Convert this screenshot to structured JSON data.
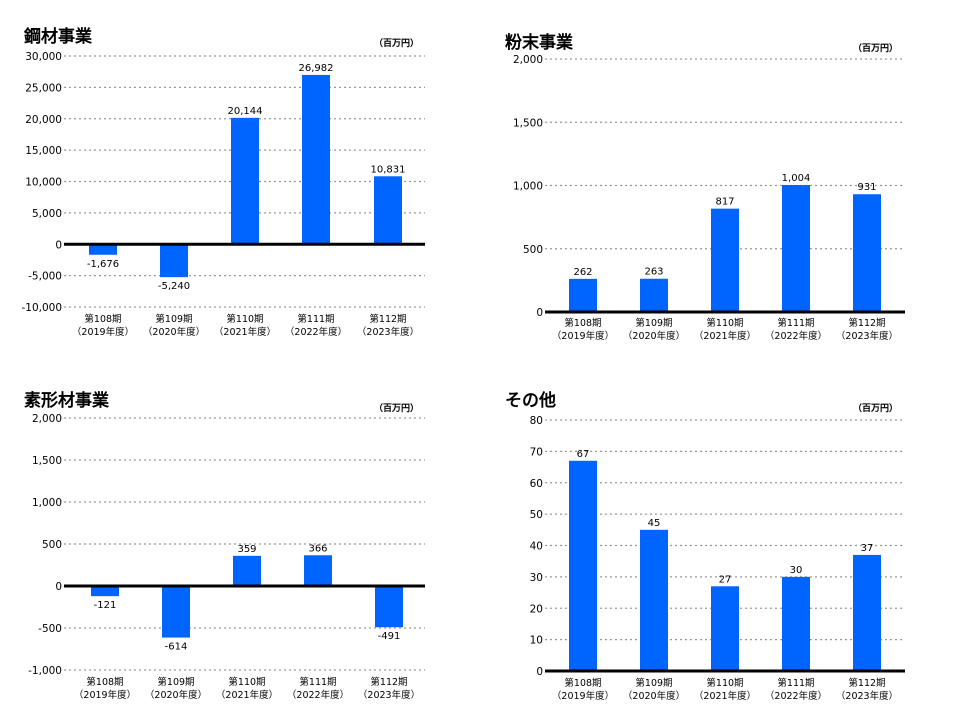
{
  "colors": {
    "bar": "#0064ff",
    "grid": "#999999",
    "axis": "#000000"
  },
  "categories": [
    [
      "第108期",
      "（2019年度）"
    ],
    [
      "第109期",
      "（2020年度）"
    ],
    [
      "第110期",
      "（2021年度）"
    ],
    [
      "第111期",
      "（2022年度）"
    ],
    [
      "第112期",
      "（2023年度）"
    ]
  ],
  "chart_data": [
    {
      "type": "bar",
      "title": "鋼材事業",
      "unit": "（百万円）",
      "categories": [
        "第108期（2019年度）",
        "第109期（2020年度）",
        "第110期（2021年度）",
        "第111期（2022年度）",
        "第112期（2023年度）"
      ],
      "values": [
        -1676,
        -5240,
        20144,
        26982,
        10831
      ],
      "data_labels": [
        "-1,676",
        "-5,240",
        "20,144",
        "26,982",
        "10,831"
      ],
      "ylim": [
        -10000,
        30000
      ],
      "yticks": [
        30000,
        25000,
        20000,
        15000,
        10000,
        5000,
        0,
        -5000,
        -10000
      ],
      "ytick_labels": [
        "30,000",
        "25,000",
        "20,000",
        "15,000",
        "10,000",
        "5,000",
        "0",
        "-5,000",
        "-10,000"
      ],
      "grid": true
    },
    {
      "type": "bar",
      "title": "粉末事業",
      "unit": "（百万円）",
      "categories": [
        "第108期（2019年度）",
        "第109期（2020年度）",
        "第110期（2021年度）",
        "第111期（2022年度）",
        "第112期（2023年度）"
      ],
      "values": [
        262,
        263,
        817,
        1004,
        931
      ],
      "data_labels": [
        "262",
        "263",
        "817",
        "1,004",
        "931"
      ],
      "ylim": [
        0,
        2000
      ],
      "yticks": [
        2000,
        1500,
        1000,
        500,
        0
      ],
      "ytick_labels": [
        "2,000",
        "1,500",
        "1,000",
        "500",
        "0"
      ],
      "grid": true
    },
    {
      "type": "bar",
      "title": "素形材事業",
      "unit": "（百万円）",
      "categories": [
        "第108期（2019年度）",
        "第109期（2020年度）",
        "第110期（2021年度）",
        "第111期（2022年度）",
        "第112期（2023年度）"
      ],
      "values": [
        -121,
        -614,
        359,
        366,
        -491
      ],
      "data_labels": [
        "-121",
        "-614",
        "359",
        "366",
        "-491"
      ],
      "ylim": [
        -1000,
        2000
      ],
      "yticks": [
        2000,
        1500,
        1000,
        500,
        0,
        -500,
        -1000
      ],
      "ytick_labels": [
        "2,000",
        "1,500",
        "1,000",
        "500",
        "0",
        "-500",
        "-1,000"
      ],
      "grid": true
    },
    {
      "type": "bar",
      "title": "その他",
      "unit": "（百万円）",
      "categories": [
        "第108期（2019年度）",
        "第109期（2020年度）",
        "第110期（2021年度）",
        "第111期（2022年度）",
        "第112期（2023年度）"
      ],
      "values": [
        67,
        45,
        27,
        30,
        37
      ],
      "data_labels": [
        "67",
        "45",
        "27",
        "30",
        "37"
      ],
      "ylim": [
        0,
        80
      ],
      "yticks": [
        80,
        70,
        60,
        50,
        40,
        30,
        20,
        10,
        0
      ],
      "ytick_labels": [
        "80",
        "70",
        "60",
        "50",
        "40",
        "30",
        "20",
        "10",
        "0"
      ],
      "grid": true
    }
  ]
}
